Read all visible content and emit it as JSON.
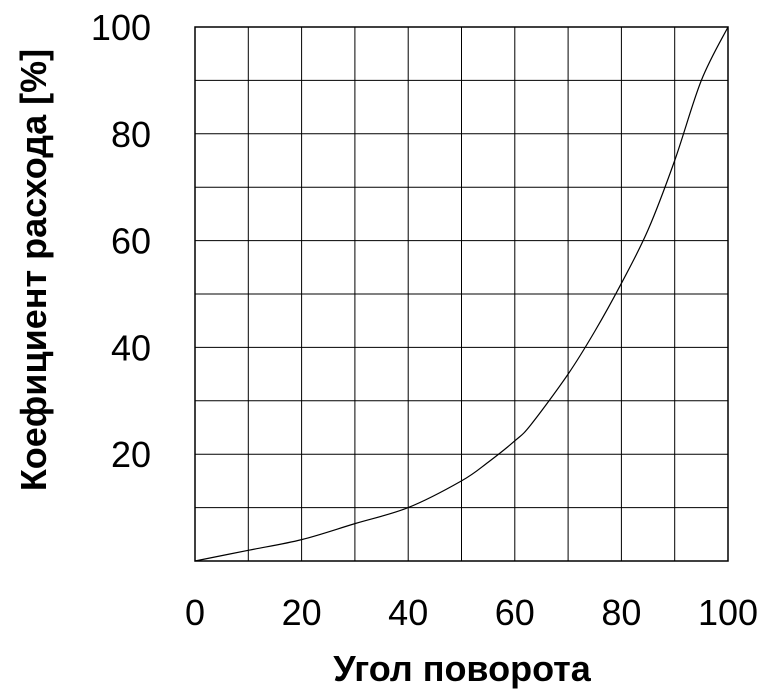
{
  "chart_data": {
    "type": "line",
    "xlabel": "Угол поворота",
    "ylabel": "Коефициент расхода [%]",
    "xlim": [
      0,
      100
    ],
    "ylim": [
      0,
      100
    ],
    "x_ticks": [
      "0",
      "20",
      "40",
      "60",
      "80",
      "100"
    ],
    "y_ticks": [
      "20",
      "40",
      "60",
      "80",
      "100"
    ],
    "grid": true,
    "grid_step": 10,
    "series": [
      {
        "x": [
          0,
          10,
          20,
          30,
          40,
          50,
          55,
          60,
          63,
          70,
          75,
          80,
          85,
          90,
          95,
          100
        ],
        "y": [
          0,
          2,
          4,
          7,
          10,
          15,
          18.5,
          22.5,
          25.5,
          35,
          43,
          52,
          62,
          75,
          90,
          100
        ]
      }
    ]
  }
}
